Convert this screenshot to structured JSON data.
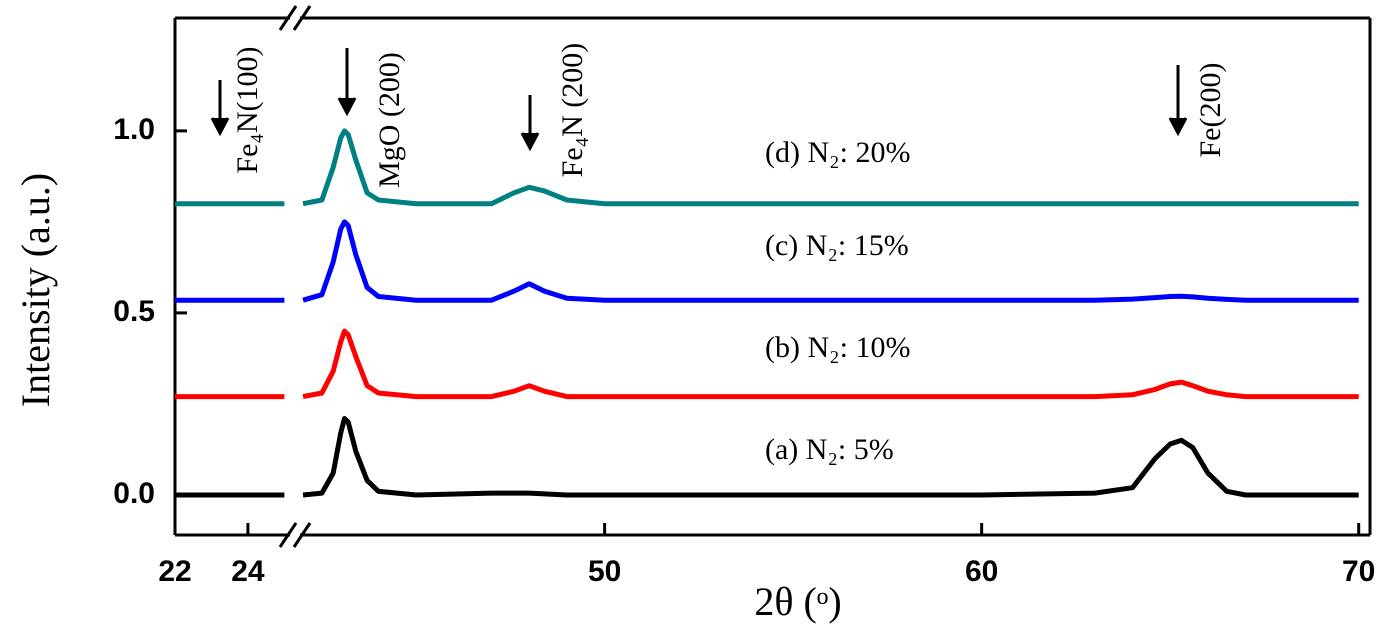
{
  "chart_data": {
    "type": "line",
    "xlabel": "2θ (ᵒ)",
    "ylabel": "Intensity (a.u.)",
    "x": [
      22,
      25,
      42,
      42.5,
      42.8,
      43,
      43.1,
      43.2,
      43.4,
      43.7,
      44,
      45,
      47,
      47.6,
      48,
      48.4,
      49,
      50,
      55,
      60,
      63,
      64,
      64.6,
      65,
      65.3,
      65.6,
      66,
      66.5,
      67,
      70
    ],
    "series": [
      {
        "name": "(a) N₂:  5%",
        "color": "#000000",
        "values": [
          0,
          0,
          0,
          0.005,
          0.06,
          0.17,
          0.21,
          0.2,
          0.12,
          0.04,
          0.01,
          0,
          0.005,
          0.005,
          0.005,
          0.003,
          0,
          0,
          0,
          0,
          0.005,
          0.02,
          0.1,
          0.14,
          0.15,
          0.13,
          0.06,
          0.01,
          0,
          0
        ]
      },
      {
        "name": "(b) N₂:  10%",
        "color": "#ff0000",
        "values": [
          0.27,
          0.27,
          0.27,
          0.28,
          0.34,
          0.42,
          0.45,
          0.44,
          0.38,
          0.3,
          0.28,
          0.27,
          0.27,
          0.285,
          0.3,
          0.285,
          0.27,
          0.27,
          0.27,
          0.27,
          0.27,
          0.275,
          0.29,
          0.305,
          0.31,
          0.3,
          0.285,
          0.275,
          0.27,
          0.27
        ]
      },
      {
        "name": "(c) N₂:  15%",
        "color": "#0000ff",
        "values": [
          0.535,
          0.535,
          0.535,
          0.55,
          0.64,
          0.73,
          0.75,
          0.74,
          0.66,
          0.57,
          0.545,
          0.535,
          0.535,
          0.56,
          0.58,
          0.56,
          0.54,
          0.535,
          0.535,
          0.535,
          0.535,
          0.538,
          0.542,
          0.545,
          0.546,
          0.544,
          0.54,
          0.537,
          0.535,
          0.535
        ]
      },
      {
        "name": "(d) N₂:  20%",
        "color": "#008080",
        "values": [
          0.8,
          0.8,
          0.8,
          0.81,
          0.9,
          0.98,
          1.0,
          0.99,
          0.92,
          0.83,
          0.81,
          0.8,
          0.8,
          0.83,
          0.845,
          0.835,
          0.81,
          0.8,
          0.8,
          0.8,
          0.8,
          0.8,
          0.8,
          0.8,
          0.8,
          0.8,
          0.8,
          0.8,
          0.8,
          0.8
        ]
      }
    ],
    "xlim": [
      22,
      70.3
    ],
    "xbreak": [
      25.1,
      42
    ],
    "xticks": [
      22,
      24,
      50,
      60,
      70
    ],
    "ylim": [
      -0.11,
      1.31
    ],
    "yticks": [
      {
        "value": 0,
        "label": "0.0"
      },
      {
        "value": 0.5,
        "label": "0.5"
      },
      {
        "value": 1.0,
        "label": "1.0"
      }
    ],
    "annotations": [
      "Fe₄N(100)",
      "MgO (200)",
      "Fe₄N (200)",
      "Fe(200)"
    ]
  }
}
